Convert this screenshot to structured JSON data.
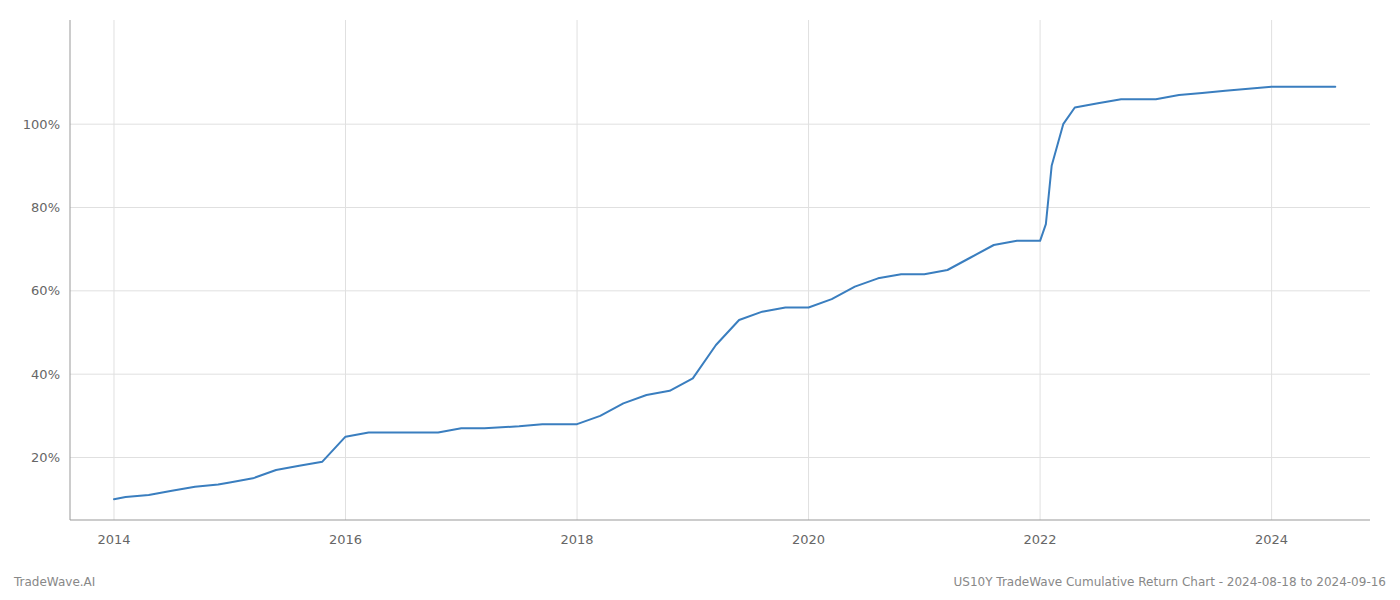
{
  "chart_data": {
    "type": "line",
    "x": [
      2014.0,
      2014.1,
      2014.3,
      2014.5,
      2014.7,
      2014.9,
      2015.0,
      2015.2,
      2015.4,
      2015.6,
      2015.8,
      2016.0,
      2016.2,
      2016.4,
      2016.6,
      2016.8,
      2017.0,
      2017.2,
      2017.5,
      2017.7,
      2018.0,
      2018.2,
      2018.4,
      2018.6,
      2018.8,
      2019.0,
      2019.2,
      2019.4,
      2019.6,
      2019.8,
      2020.0,
      2020.2,
      2020.4,
      2020.6,
      2020.8,
      2021.0,
      2021.2,
      2021.4,
      2021.6,
      2021.8,
      2022.0,
      2022.05,
      2022.1,
      2022.2,
      2022.3,
      2022.5,
      2022.7,
      2022.9,
      2023.0,
      2023.2,
      2023.4,
      2023.6,
      2023.8,
      2024.0,
      2024.2,
      2024.55
    ],
    "values": [
      10,
      10.5,
      11,
      12,
      13,
      13.5,
      14,
      15,
      17,
      18,
      19,
      25,
      26,
      26,
      26,
      26,
      27,
      27,
      27.5,
      28,
      28,
      30,
      33,
      35,
      36,
      39,
      47,
      53,
      55,
      56,
      56,
      58,
      61,
      63,
      64,
      64,
      65,
      68,
      71,
      72,
      72,
      76,
      90,
      100,
      104,
      105,
      106,
      106,
      106,
      107,
      107.5,
      108,
      108.5,
      109,
      109,
      109
    ],
    "color": "#3a7ebf",
    "xlim": [
      2013.62,
      2024.85
    ],
    "xticks": [
      2014,
      2016,
      2018,
      2020,
      2022,
      2024
    ],
    "ylim": [
      5,
      125
    ],
    "yticks": [
      {
        "value": 20,
        "label": "20%"
      },
      {
        "value": 40,
        "label": "40%"
      },
      {
        "value": 60,
        "label": "60%"
      },
      {
        "value": 80,
        "label": "80%"
      },
      {
        "value": 100,
        "label": "100%"
      }
    ],
    "grid": true,
    "annotations": [
      "TradeWave.AI",
      "US10Y TradeWave Cumulative Return Chart - 2024-08-18 to 2024-09-16"
    ]
  }
}
